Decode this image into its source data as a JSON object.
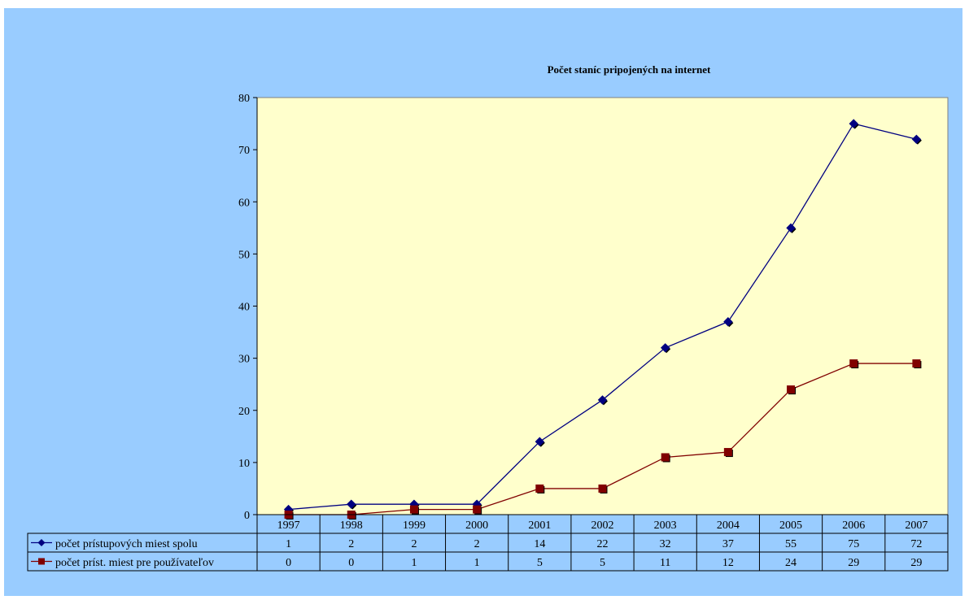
{
  "chart_data": {
    "type": "line",
    "title": "Počet staníc pripojených na internet",
    "xlabel": "",
    "ylabel": "",
    "categories": [
      "1997",
      "1998",
      "1999",
      "2000",
      "2001",
      "2002",
      "2003",
      "2004",
      "2005",
      "2006",
      "2007"
    ],
    "ylim": [
      0,
      80
    ],
    "yticks": [
      0,
      10,
      20,
      30,
      40,
      50,
      60,
      70,
      80
    ],
    "grid": false,
    "legend": "data-table",
    "series": [
      {
        "name": "počet prístupových miest spolu",
        "values": [
          1,
          2,
          2,
          2,
          14,
          22,
          32,
          37,
          55,
          75,
          72
        ],
        "color": "#000080",
        "marker": "diamond"
      },
      {
        "name": "počet príst. miest pre používateľov",
        "values": [
          0,
          0,
          1,
          1,
          5,
          5,
          11,
          12,
          24,
          29,
          29
        ],
        "color": "#800000",
        "marker": "square"
      }
    ],
    "colors": {
      "background": "#99ccff",
      "plot_area": "#ffffcc"
    }
  }
}
